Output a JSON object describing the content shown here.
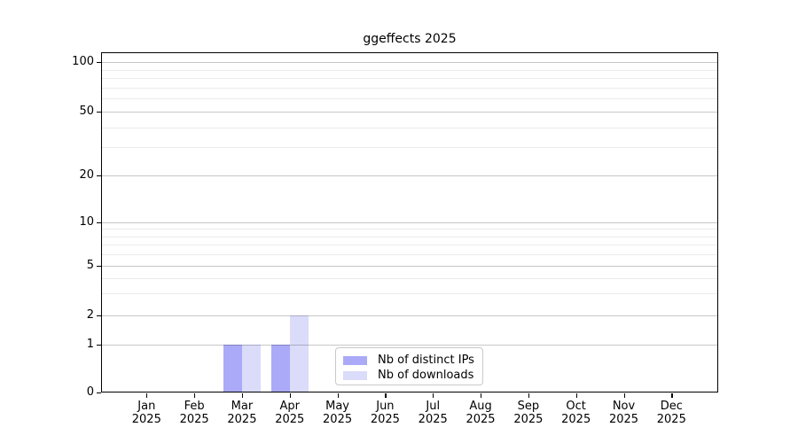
{
  "chart_data": {
    "type": "bar",
    "title": "ggeffects 2025",
    "xlabel": "",
    "ylabel": "",
    "scale": "symlog (linear 0-1, logarithmic above)",
    "grid": "horizontal major and minor gridlines",
    "legend_position": "inside bottom-center",
    "categories": [
      {
        "month": "Jan",
        "year": "2025"
      },
      {
        "month": "Feb",
        "year": "2025"
      },
      {
        "month": "Mar",
        "year": "2025"
      },
      {
        "month": "Apr",
        "year": "2025"
      },
      {
        "month": "May",
        "year": "2025"
      },
      {
        "month": "Jun",
        "year": "2025"
      },
      {
        "month": "Jul",
        "year": "2025"
      },
      {
        "month": "Aug",
        "year": "2025"
      },
      {
        "month": "Sep",
        "year": "2025"
      },
      {
        "month": "Oct",
        "year": "2025"
      },
      {
        "month": "Nov",
        "year": "2025"
      },
      {
        "month": "Dec",
        "year": "2025"
      }
    ],
    "series": [
      {
        "name": "Nb of distinct IPs",
        "color": "#aaaaf8",
        "values": [
          0,
          0,
          1,
          1,
          0,
          0,
          0,
          0,
          0,
          0,
          0,
          0
        ]
      },
      {
        "name": "Nb of downloads",
        "color": "#dbdbfa",
        "values": [
          0,
          0,
          1,
          2,
          0,
          0,
          0,
          0,
          0,
          0,
          0,
          0
        ]
      }
    ],
    "yticks": [
      0,
      1,
      2,
      5,
      10,
      20,
      50,
      100
    ],
    "minor_yticks": [
      3,
      4,
      6,
      7,
      8,
      9,
      30,
      40,
      60,
      70,
      80,
      90
    ],
    "ylim": [
      0,
      110
    ],
    "colors": {
      "grid_major": "rgba(0,0,0,0.22)",
      "grid_minor": "rgba(0,0,0,0.08)",
      "spine": "#000000",
      "legend_border": "#c9c9c9",
      "background": "#ffffff"
    }
  }
}
